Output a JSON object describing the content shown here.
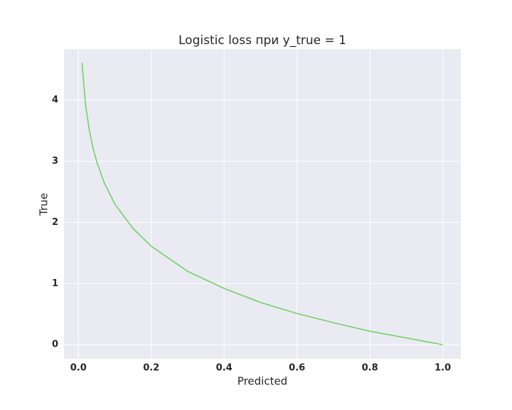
{
  "chart_data": {
    "type": "line",
    "title": "Logistic loss при y_true = 1",
    "x_label": "Predicted",
    "y_label": "True",
    "x": [
      0.01,
      0.02,
      0.03,
      0.04,
      0.05,
      0.07,
      0.1,
      0.15,
      0.2,
      0.3,
      0.4,
      0.5,
      0.6,
      0.7,
      0.8,
      0.9,
      1.0
    ],
    "series": [
      {
        "color": "#6bd05f",
        "values": [
          4.61,
          3.91,
          3.51,
          3.22,
          3.0,
          2.66,
          2.3,
          1.9,
          1.61,
          1.2,
          0.92,
          0.69,
          0.51,
          0.36,
          0.22,
          0.11,
          0
        ]
      }
    ],
    "xlim": [
      -0.0395,
      1.0495
    ],
    "ylim": [
      -0.23,
      4.835
    ],
    "xticks": [
      {
        "value": 0,
        "label": "0.0"
      },
      {
        "value": 0.2,
        "label": "0.2"
      },
      {
        "value": 0.4,
        "label": "0.4"
      },
      {
        "value": 0.6,
        "label": "0.6"
      },
      {
        "value": 0.8,
        "label": "0.8"
      },
      {
        "value": 1,
        "label": "1.0"
      }
    ],
    "yticks": [
      0,
      1,
      2,
      3,
      4
    ],
    "grid": true
  }
}
